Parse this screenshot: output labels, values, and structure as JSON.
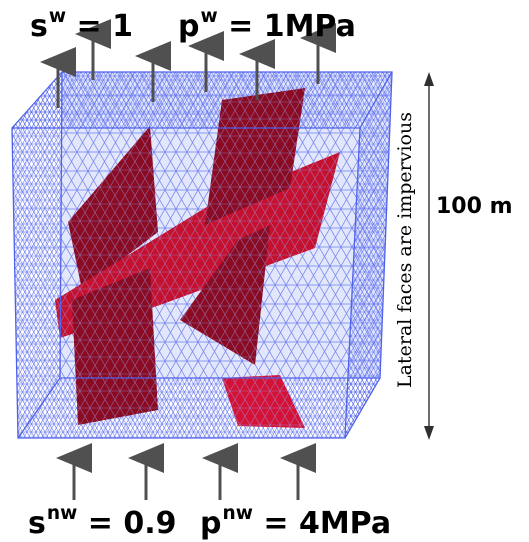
{
  "top_boundary": {
    "saturation": {
      "symbol": "s",
      "superscript": "w",
      "relation": "= 1"
    },
    "pressure": {
      "symbol": "p",
      "superscript": "w",
      "relation": "= 1MPa"
    }
  },
  "bottom_boundary": {
    "saturation": {
      "symbol": "s",
      "superscript": "nw",
      "relation": "= 0.9"
    },
    "pressure": {
      "symbol": "p",
      "superscript": "nw",
      "relation": "= 4MPa"
    }
  },
  "height_label": "100 m",
  "lateral_label": "Lateral faces are impervious",
  "colors": {
    "mesh": "#6f7ff0",
    "mesh_bg": "#dfe4fb",
    "fracture": "#c5102e",
    "fracture_dark": "#8a0b22",
    "arrow": "#505050",
    "text": "#000000"
  },
  "icons": [
    "up-arrow-icon",
    "double-headed-arrow-icon"
  ]
}
